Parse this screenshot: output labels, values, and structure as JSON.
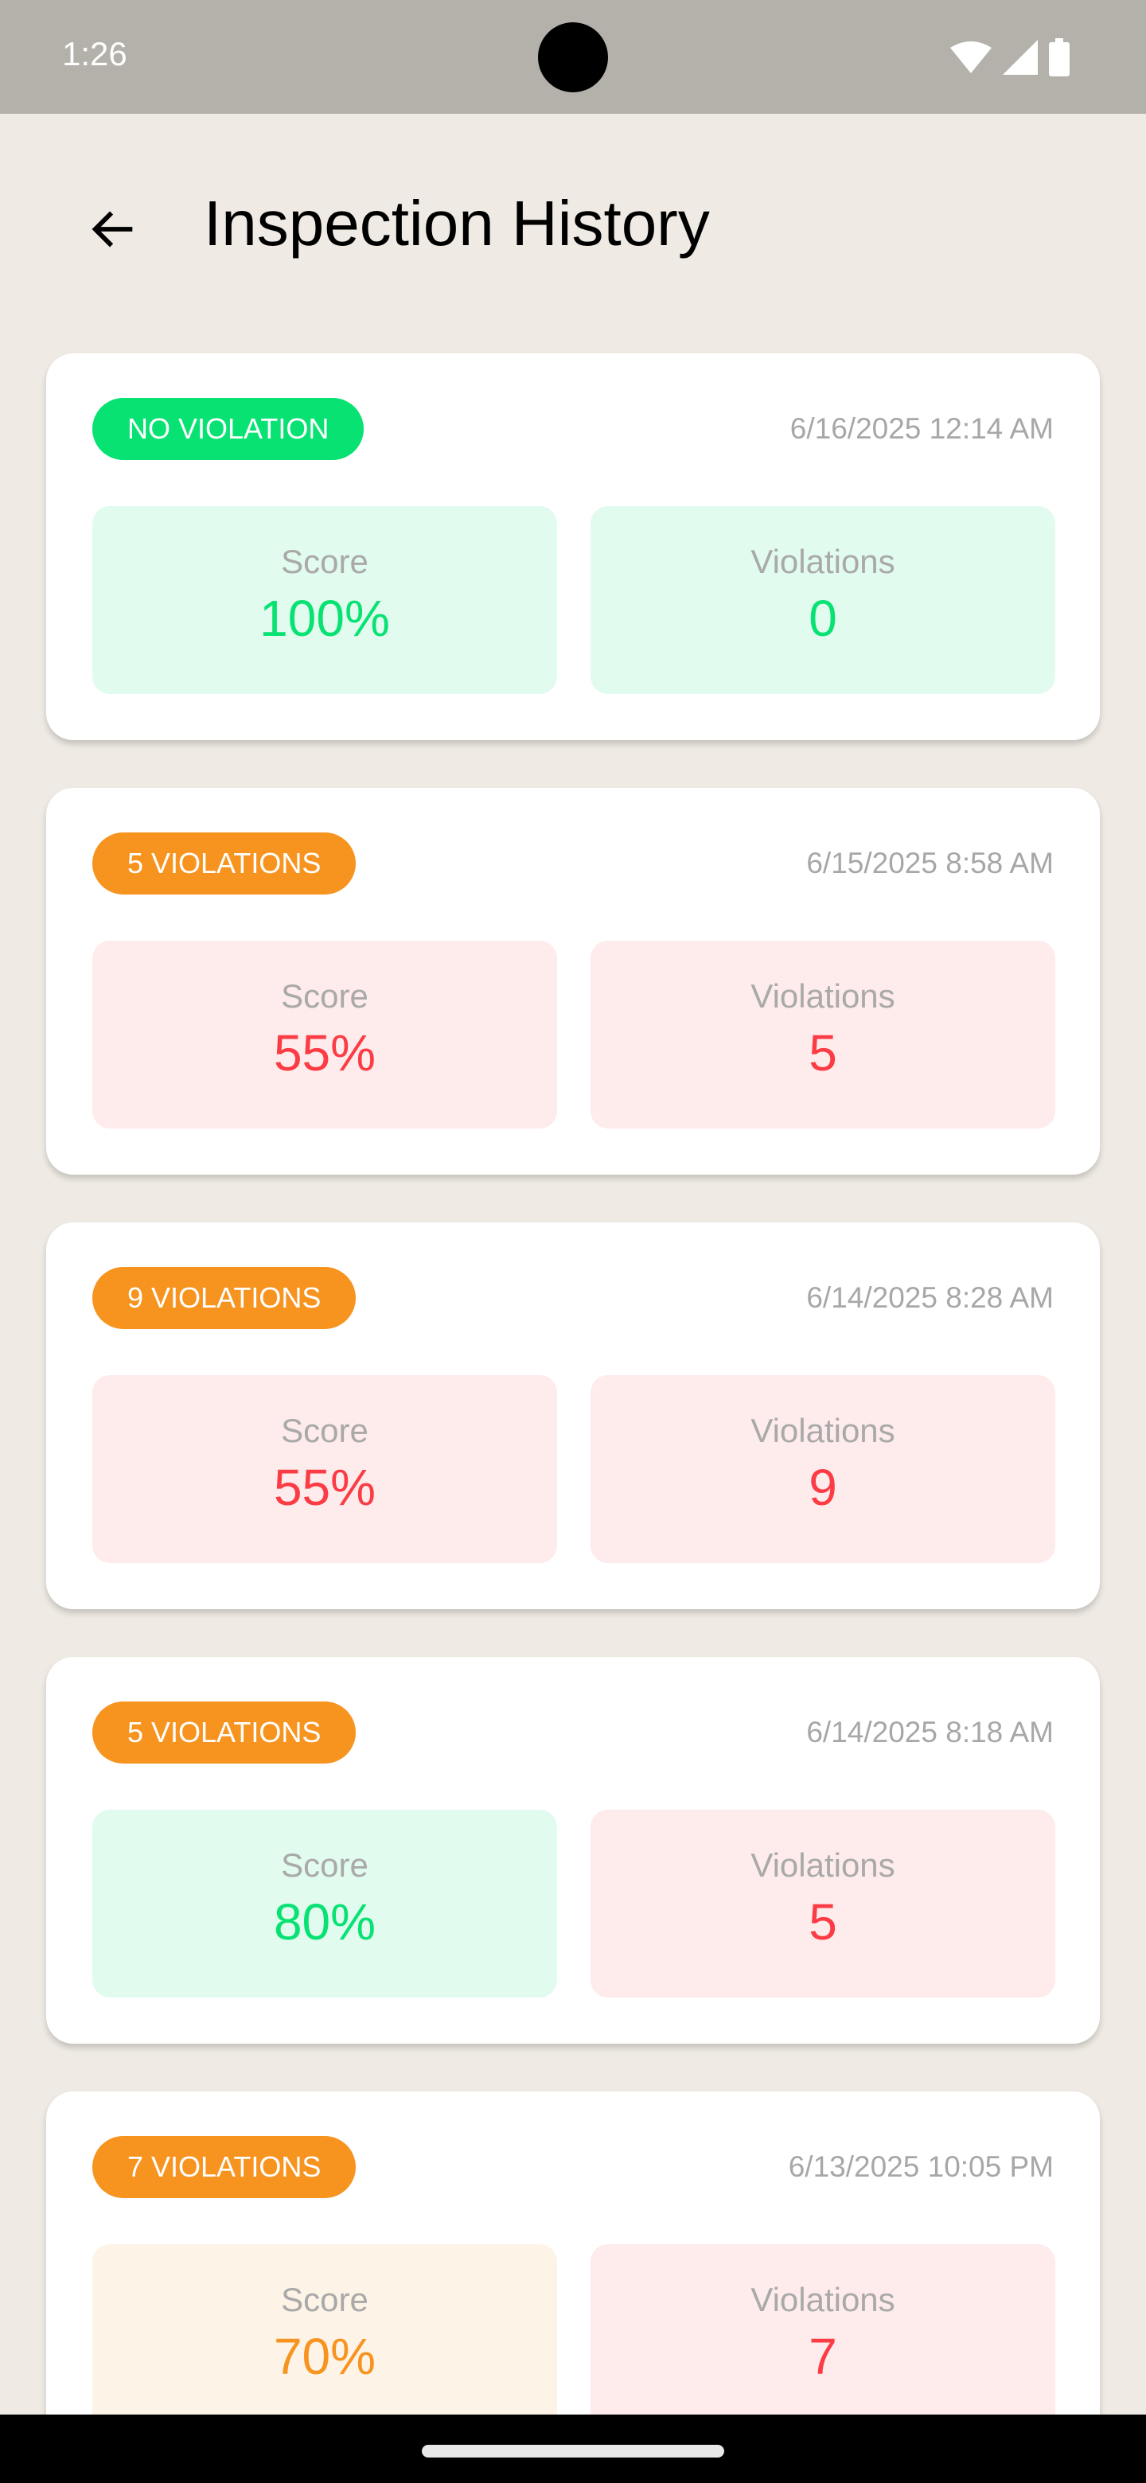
{
  "status_bar": {
    "time": "1:26"
  },
  "header": {
    "title": "Inspection History"
  },
  "labels": {
    "score": "Score",
    "violations": "Violations"
  },
  "colors": {
    "green": "#07e273",
    "orange": "#f79420",
    "red": "#fb3c45",
    "green_bg": "#e1fbee",
    "red_bg": "#feebeb",
    "orange_bg": "#fdf3e7"
  },
  "inspections": [
    {
      "badge": "NO VIOLATION",
      "date": "6/16/2025 12:14 AM",
      "score": "100%",
      "violations": "0",
      "badge_color": "green",
      "score_tone": "green",
      "violations_tone": "green"
    },
    {
      "badge": "5 VIOLATIONS",
      "date": "6/15/2025 8:58 AM",
      "score": "55%",
      "violations": "5",
      "badge_color": "orange",
      "score_tone": "red",
      "violations_tone": "red"
    },
    {
      "badge": "9 VIOLATIONS",
      "date": "6/14/2025 8:28 AM",
      "score": "55%",
      "violations": "9",
      "badge_color": "orange",
      "score_tone": "red",
      "violations_tone": "red"
    },
    {
      "badge": "5 VIOLATIONS",
      "date": "6/14/2025 8:18 AM",
      "score": "80%",
      "violations": "5",
      "badge_color": "orange",
      "score_tone": "green",
      "violations_tone": "red"
    },
    {
      "badge": "7 VIOLATIONS",
      "date": "6/13/2025 10:05 PM",
      "score": "70%",
      "violations": "7",
      "badge_color": "orange",
      "score_tone": "orange",
      "violations_tone": "red"
    }
  ]
}
